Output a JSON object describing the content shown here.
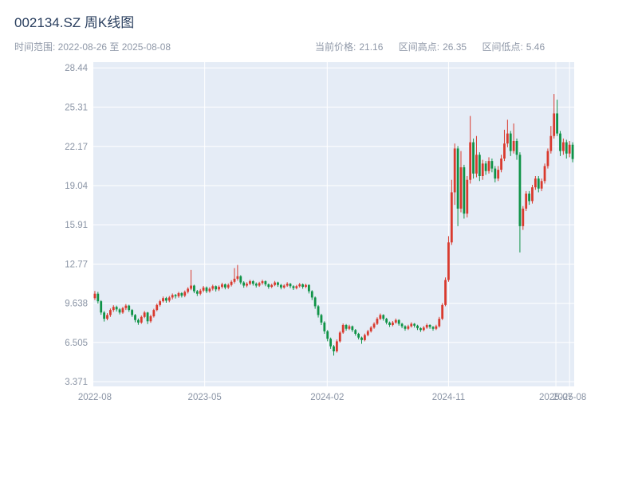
{
  "header": {
    "title": "002134.SZ 周K线图",
    "time_range": "时间范围: 2022-08-26 至 2025-08-08",
    "stats": [
      {
        "label": "当前价格:",
        "value": "21.16"
      },
      {
        "label": "区间高点:",
        "value": "26.35"
      },
      {
        "label": "区间低点:",
        "value": "5.46"
      }
    ]
  },
  "chart_data": {
    "type": "candlestick",
    "symbol": "002134.SZ",
    "period": "weekly",
    "title": "002134.SZ 周K线图",
    "date_start": "2022-08-26",
    "date_end": "2025-08-08",
    "current_price": 21.16,
    "range_high": 26.35,
    "range_low": 5.46,
    "y_range": [
      3.0,
      28.9
    ],
    "grid": true,
    "y_ticks": [
      {
        "value": 28.44,
        "label": "28.44"
      },
      {
        "value": 25.31,
        "label": "25.31"
      },
      {
        "value": 22.17,
        "label": "22.17"
      },
      {
        "value": 19.04,
        "label": "19.04"
      },
      {
        "value": 15.91,
        "label": "15.91"
      },
      {
        "value": 12.77,
        "label": "12.77"
      },
      {
        "value": 9.638,
        "label": "9.638"
      },
      {
        "value": 6.505,
        "label": "6.505"
      },
      {
        "value": 3.371,
        "label": "3.371"
      }
    ],
    "x_ticks": [
      {
        "pos": 0,
        "label": "2022-08"
      },
      {
        "pos": 35.4,
        "label": "2023-05"
      },
      {
        "pos": 74.9,
        "label": "2024-02"
      },
      {
        "pos": 114.0,
        "label": "2024-11"
      },
      {
        "pos": 148.6,
        "label": "2025-07"
      },
      {
        "pos": 153.0,
        "label": "2025-08"
      }
    ],
    "colors": {
      "up": "#d93a2e",
      "down": "#0f9347",
      "plot_bg": "#e5ecf6",
      "grid": "#ffffff",
      "title_text": "#2a3f5f",
      "tick_text": "#8a94a5"
    },
    "ohlc": [
      [
        10.05,
        10.62,
        9.9,
        10.4
      ],
      [
        10.4,
        10.55,
        9.62,
        9.8
      ],
      [
        9.8,
        9.88,
        8.72,
        8.9
      ],
      [
        8.9,
        9.02,
        8.18,
        8.4
      ],
      [
        8.4,
        8.85,
        8.28,
        8.7
      ],
      [
        8.7,
        9.22,
        8.55,
        9.1
      ],
      [
        9.1,
        9.48,
        8.95,
        9.35
      ],
      [
        9.35,
        9.45,
        8.98,
        9.15
      ],
      [
        9.15,
        9.25,
        8.75,
        8.9
      ],
      [
        8.9,
        9.35,
        8.8,
        9.25
      ],
      [
        9.25,
        9.58,
        9.1,
        9.45
      ],
      [
        9.45,
        9.52,
        8.95,
        9.1
      ],
      [
        9.1,
        9.18,
        8.55,
        8.7
      ],
      [
        8.7,
        8.78,
        8.12,
        8.3
      ],
      [
        8.3,
        8.42,
        7.92,
        8.1
      ],
      [
        8.1,
        8.66,
        8.0,
        8.55
      ],
      [
        8.55,
        9.02,
        8.45,
        8.9
      ],
      [
        8.9,
        8.95,
        7.98,
        8.2
      ],
      [
        8.2,
        8.72,
        8.08,
        8.6
      ],
      [
        8.6,
        9.2,
        8.5,
        9.1
      ],
      [
        9.1,
        9.62,
        9.0,
        9.5
      ],
      [
        9.5,
        9.92,
        9.38,
        9.8
      ],
      [
        9.8,
        10.18,
        9.7,
        10.05
      ],
      [
        10.05,
        10.15,
        9.68,
        9.85
      ],
      [
        9.85,
        10.22,
        9.72,
        10.1
      ],
      [
        10.1,
        10.42,
        9.95,
        10.3
      ],
      [
        10.3,
        10.38,
        10.02,
        10.2
      ],
      [
        10.2,
        10.55,
        10.08,
        10.45
      ],
      [
        10.45,
        10.52,
        10.1,
        10.25
      ],
      [
        10.25,
        10.66,
        10.12,
        10.55
      ],
      [
        10.55,
        10.92,
        10.42,
        10.8
      ],
      [
        10.8,
        12.3,
        10.68,
        11.05
      ],
      [
        11.05,
        11.12,
        10.45,
        10.6
      ],
      [
        10.6,
        10.7,
        10.22,
        10.4
      ],
      [
        10.4,
        10.78,
        10.28,
        10.65
      ],
      [
        10.65,
        11.02,
        10.52,
        10.9
      ],
      [
        10.9,
        10.98,
        10.45,
        10.6
      ],
      [
        10.6,
        10.92,
        10.48,
        10.8
      ],
      [
        10.8,
        11.12,
        10.66,
        11.0
      ],
      [
        11.0,
        11.06,
        10.58,
        10.75
      ],
      [
        10.75,
        11.06,
        10.62,
        10.95
      ],
      [
        10.95,
        11.28,
        10.82,
        11.15
      ],
      [
        11.15,
        11.22,
        10.75,
        10.9
      ],
      [
        10.9,
        11.22,
        10.78,
        11.1
      ],
      [
        11.1,
        11.48,
        10.98,
        11.35
      ],
      [
        11.35,
        12.45,
        11.22,
        11.6
      ],
      [
        11.6,
        12.7,
        11.45,
        11.8
      ],
      [
        11.8,
        11.88,
        11.15,
        11.3
      ],
      [
        11.3,
        11.4,
        10.88,
        11.05
      ],
      [
        11.05,
        11.32,
        10.92,
        11.2
      ],
      [
        11.2,
        11.52,
        11.08,
        11.4
      ],
      [
        11.4,
        11.48,
        11.05,
        11.2
      ],
      [
        11.2,
        11.3,
        10.9,
        11.05
      ],
      [
        11.05,
        11.35,
        10.95,
        11.25
      ],
      [
        11.25,
        11.52,
        11.12,
        11.4
      ],
      [
        11.4,
        11.46,
        11.0,
        11.15
      ],
      [
        11.15,
        11.22,
        10.8,
        10.95
      ],
      [
        10.95,
        11.2,
        10.85,
        11.1
      ],
      [
        11.1,
        11.42,
        11.0,
        11.3
      ],
      [
        11.3,
        11.36,
        10.95,
        11.1
      ],
      [
        11.1,
        11.18,
        10.75,
        10.9
      ],
      [
        10.9,
        11.15,
        10.8,
        11.05
      ],
      [
        11.05,
        11.32,
        10.95,
        11.2
      ],
      [
        11.2,
        11.26,
        10.85,
        11.0
      ],
      [
        11.0,
        11.08,
        10.7,
        10.85
      ],
      [
        10.85,
        11.1,
        10.75,
        11.0
      ],
      [
        11.0,
        11.26,
        10.9,
        11.15
      ],
      [
        11.15,
        11.22,
        10.8,
        10.95
      ],
      [
        10.95,
        11.2,
        10.85,
        11.1
      ],
      [
        11.1,
        11.15,
        10.42,
        10.6
      ],
      [
        10.6,
        10.68,
        9.9,
        10.1
      ],
      [
        10.1,
        10.18,
        9.2,
        9.4
      ],
      [
        9.4,
        9.5,
        8.5,
        8.7
      ],
      [
        8.7,
        8.8,
        7.9,
        8.1
      ],
      [
        8.1,
        8.2,
        7.2,
        7.4
      ],
      [
        7.4,
        7.5,
        6.6,
        6.8
      ],
      [
        6.8,
        6.9,
        6.0,
        6.2
      ],
      [
        6.2,
        6.3,
        5.46,
        5.8
      ],
      [
        5.8,
        6.75,
        5.7,
        6.6
      ],
      [
        6.6,
        7.42,
        6.5,
        7.3
      ],
      [
        7.3,
        8.02,
        7.2,
        7.9
      ],
      [
        7.9,
        7.98,
        7.45,
        7.6
      ],
      [
        7.6,
        7.92,
        7.5,
        7.8
      ],
      [
        7.8,
        7.86,
        7.35,
        7.5
      ],
      [
        7.5,
        7.58,
        7.05,
        7.2
      ],
      [
        7.2,
        7.28,
        6.75,
        6.9
      ],
      [
        6.9,
        6.98,
        6.4,
        6.7
      ],
      [
        6.7,
        7.22,
        6.6,
        7.1
      ],
      [
        7.1,
        7.52,
        7.0,
        7.4
      ],
      [
        7.4,
        7.82,
        7.3,
        7.7
      ],
      [
        7.7,
        8.12,
        7.6,
        8.0
      ],
      [
        8.0,
        8.52,
        7.9,
        8.4
      ],
      [
        8.4,
        8.82,
        8.3,
        8.7
      ],
      [
        8.7,
        8.76,
        8.25,
        8.4
      ],
      [
        8.4,
        8.48,
        7.95,
        8.1
      ],
      [
        8.1,
        8.18,
        7.75,
        7.9
      ],
      [
        7.9,
        8.22,
        7.8,
        8.1
      ],
      [
        8.1,
        8.42,
        8.0,
        8.3
      ],
      [
        8.3,
        8.36,
        7.85,
        8.0
      ],
      [
        8.0,
        8.08,
        7.65,
        7.8
      ],
      [
        7.8,
        7.88,
        7.45,
        7.6
      ],
      [
        7.6,
        7.92,
        7.5,
        7.8
      ],
      [
        7.8,
        8.12,
        7.7,
        8.0
      ],
      [
        8.0,
        8.06,
        7.7,
        7.85
      ],
      [
        7.85,
        7.92,
        7.5,
        7.65
      ],
      [
        7.65,
        7.72,
        7.35,
        7.5
      ],
      [
        7.5,
        7.82,
        7.4,
        7.7
      ],
      [
        7.7,
        8.02,
        7.6,
        7.9
      ],
      [
        7.9,
        7.96,
        7.6,
        7.75
      ],
      [
        7.75,
        7.82,
        7.45,
        7.6
      ],
      [
        7.6,
        7.92,
        7.5,
        7.8
      ],
      [
        7.8,
        8.55,
        7.7,
        8.4
      ],
      [
        8.4,
        9.65,
        8.3,
        9.5
      ],
      [
        9.5,
        11.7,
        9.4,
        11.5
      ],
      [
        11.5,
        15.0,
        11.35,
        14.5
      ],
      [
        14.5,
        19.5,
        14.3,
        18.5
      ],
      [
        18.5,
        22.4,
        17.5,
        22.0
      ],
      [
        22.0,
        22.2,
        15.8,
        17.2
      ],
      [
        17.2,
        21.8,
        16.9,
        20.5
      ],
      [
        20.5,
        20.7,
        16.4,
        16.8
      ],
      [
        16.8,
        19.8,
        16.5,
        19.5
      ],
      [
        19.5,
        24.6,
        19.2,
        22.5
      ],
      [
        22.5,
        22.8,
        19.6,
        20.0
      ],
      [
        20.0,
        23.0,
        19.7,
        21.5
      ],
      [
        21.5,
        21.7,
        19.4,
        19.8
      ],
      [
        19.8,
        21.1,
        19.5,
        20.8
      ],
      [
        20.8,
        21.0,
        19.9,
        20.2
      ],
      [
        20.2,
        21.3,
        20.0,
        21.0
      ],
      [
        21.0,
        21.2,
        20.1,
        20.4
      ],
      [
        20.4,
        20.6,
        19.3,
        19.6
      ],
      [
        19.6,
        20.6,
        19.4,
        20.3
      ],
      [
        20.3,
        21.5,
        20.1,
        21.2
      ],
      [
        21.2,
        23.5,
        21.0,
        22.4
      ],
      [
        22.4,
        24.3,
        22.1,
        23.2
      ],
      [
        23.2,
        23.4,
        21.4,
        21.8
      ],
      [
        21.8,
        24.0,
        21.6,
        22.6
      ],
      [
        22.6,
        22.8,
        21.1,
        21.5
      ],
      [
        21.5,
        21.7,
        13.7,
        15.8
      ],
      [
        15.8,
        17.4,
        15.5,
        17.2
      ],
      [
        17.2,
        18.6,
        17.0,
        18.4
      ],
      [
        18.4,
        18.6,
        17.5,
        17.8
      ],
      [
        17.8,
        19.1,
        17.6,
        18.9
      ],
      [
        18.9,
        19.8,
        18.7,
        19.6
      ],
      [
        19.6,
        19.8,
        18.5,
        18.8
      ],
      [
        18.8,
        19.6,
        18.6,
        19.4
      ],
      [
        19.4,
        20.8,
        19.2,
        20.6
      ],
      [
        20.6,
        22.0,
        20.4,
        21.8
      ],
      [
        21.8,
        23.8,
        21.6,
        23.0
      ],
      [
        23.0,
        26.35,
        22.8,
        24.8
      ],
      [
        24.8,
        25.9,
        23.0,
        23.2
      ],
      [
        23.2,
        23.4,
        21.4,
        21.8
      ],
      [
        21.8,
        22.8,
        21.5,
        22.5
      ],
      [
        22.5,
        22.7,
        21.2,
        21.6
      ],
      [
        21.6,
        22.6,
        21.3,
        22.3
      ],
      [
        22.3,
        22.5,
        20.9,
        21.16
      ]
    ]
  }
}
